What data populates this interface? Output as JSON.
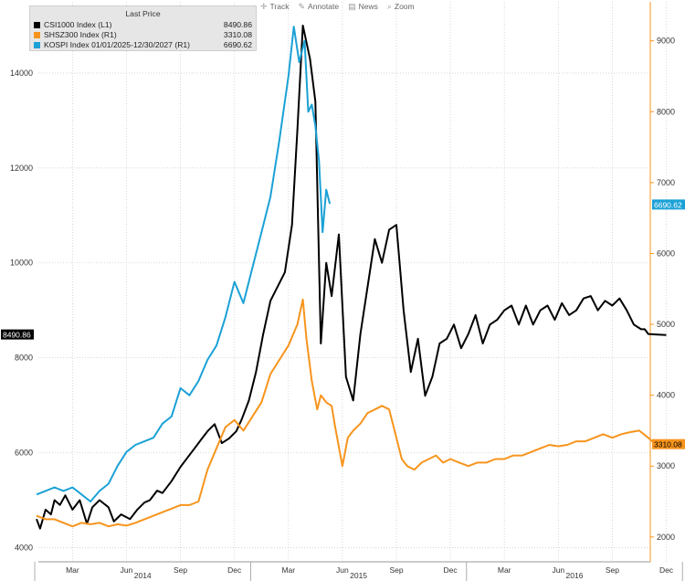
{
  "legend": {
    "title": "Last Price",
    "entries": [
      {
        "label": "CSI1000 Index  (L1)",
        "last": "8490.86",
        "color": "#000000"
      },
      {
        "label": "SHSZ300 Index  (R1)",
        "last": "3310.08",
        "color": "#f7941d"
      },
      {
        "label": "KOSPI Index 01/01/2025-12/30/2027  (R1)",
        "last": "6690.62",
        "color": "#1ba1d6"
      }
    ]
  },
  "toolbar": {
    "items": [
      {
        "label": "Track",
        "icon": "crosshair-icon",
        "glyph": "✛"
      },
      {
        "label": "Annotate",
        "icon": "pencil-icon",
        "glyph": "✎"
      },
      {
        "label": "News",
        "icon": "news-icon",
        "glyph": "▤"
      },
      {
        "label": "Zoom",
        "icon": "magnifier-icon",
        "glyph": "⌕"
      }
    ]
  },
  "chart_data": {
    "type": "line",
    "x_range": [
      "2014-01",
      "2016-12"
    ],
    "x_ticks": {
      "months": [
        "Mar",
        "Jun",
        "Sep",
        "Dec",
        "Mar",
        "Jun",
        "Sep",
        "Dec",
        "Mar",
        "Jun",
        "Sep",
        "Dec"
      ],
      "years": [
        "2014",
        "2015",
        "2016"
      ]
    },
    "left_axis": {
      "ylim": [
        3700,
        15500
      ],
      "ticks": [
        "4000",
        "6000",
        "8000",
        "10000",
        "12000",
        "14000"
      ]
    },
    "right_axis": {
      "ylim": [
        1650,
        9550
      ],
      "ticks": [
        "2000",
        "3000",
        "4000",
        "5000",
        "6000",
        "7000",
        "8000",
        "9000"
      ]
    },
    "grid": true,
    "last_value_tags": {
      "left": "8490.86",
      "right_shsz300": "3310.08",
      "right_kospi": "6690.62"
    },
    "series": [
      {
        "name": "CSI1000 Index (L1)",
        "color": "#000000",
        "axis": "left",
        "x": [
          0,
          0.2,
          0.5,
          0.8,
          1.0,
          1.3,
          1.6,
          2.0,
          2.4,
          2.8,
          3.1,
          3.5,
          4.0,
          4.3,
          4.7,
          5.2,
          5.6,
          6.0,
          6.3,
          6.7,
          7.0,
          7.5,
          8.0,
          8.4,
          8.8,
          9.2,
          9.5,
          9.9,
          10.3,
          10.7,
          11.1,
          11.4,
          11.8,
          12.2,
          12.6,
          13.0,
          13.4,
          13.8,
          14.2,
          14.5,
          14.8,
          15.2,
          15.5,
          15.8,
          16.1,
          16.4,
          16.8,
          17.2,
          17.6,
          18.0,
          18.4,
          18.8,
          19.2,
          19.6,
          20.0,
          20.4,
          20.8,
          21.2,
          21.6,
          22.0,
          22.4,
          22.8,
          23.2,
          23.6,
          24.0,
          24.4,
          24.8,
          25.2,
          25.6,
          26.0,
          26.4,
          26.8,
          27.2,
          27.6,
          28.0,
          28.4,
          28.8,
          29.2,
          29.6,
          30.0,
          30.4,
          30.8,
          31.2,
          31.6,
          32.0,
          32.4,
          32.8,
          33.2,
          33.6,
          33.8,
          34.0,
          34.4,
          35.0
        ],
        "values": [
          4600,
          4400,
          4800,
          4700,
          5000,
          4900,
          5100,
          4800,
          5000,
          4500,
          4850,
          5000,
          4850,
          4550,
          4700,
          4600,
          4800,
          4950,
          5000,
          5200,
          5150,
          5400,
          5700,
          5900,
          6100,
          6300,
          6450,
          6600,
          6200,
          6300,
          6450,
          6700,
          7100,
          7700,
          8500,
          9200,
          9500,
          9800,
          10800,
          12800,
          15000,
          14300,
          13400,
          8300,
          10000,
          9300,
          10600,
          7600,
          7100,
          8500,
          9500,
          10500,
          10000,
          10700,
          10800,
          9000,
          7700,
          8400,
          7200,
          7600,
          8300,
          8400,
          8700,
          8200,
          8500,
          8900,
          8300,
          8700,
          8800,
          9000,
          9100,
          8700,
          9100,
          8700,
          9000,
          9100,
          8800,
          9150,
          8900,
          9000,
          9250,
          9300,
          9000,
          9200,
          9100,
          9250,
          9000,
          8700,
          8600,
          8600,
          8500,
          8490.86,
          8480
        ]
      },
      {
        "name": "SHSZ300 Index (R1)",
        "color": "#f7941d",
        "axis": "right",
        "x": [
          0,
          0.5,
          1.0,
          1.5,
          2.0,
          2.5,
          3.0,
          3.5,
          4.0,
          4.5,
          5.0,
          5.5,
          6.0,
          6.5,
          7.0,
          7.5,
          8.0,
          8.5,
          9.0,
          9.5,
          10.0,
          10.5,
          11.0,
          11.5,
          12.0,
          12.5,
          13.0,
          13.5,
          14.0,
          14.5,
          14.8,
          15.0,
          15.3,
          15.6,
          15.8,
          16.1,
          16.4,
          16.6,
          17.0,
          17.3,
          17.6,
          18.0,
          18.4,
          18.8,
          19.2,
          19.6,
          20.0,
          20.3,
          20.6,
          21.0,
          21.4,
          21.8,
          22.2,
          22.6,
          23.0,
          23.5,
          24.0,
          24.5,
          25.0,
          25.5,
          26.0,
          26.5,
          27.0,
          27.5,
          28.0,
          28.5,
          29.0,
          29.5,
          30.0,
          30.5,
          31.0,
          31.5,
          32.0,
          32.5,
          33.0,
          33.5,
          34.0,
          34.4,
          35.0
        ],
        "values": [
          2300,
          2250,
          2250,
          2200,
          2150,
          2200,
          2180,
          2200,
          2150,
          2180,
          2160,
          2200,
          2250,
          2300,
          2350,
          2400,
          2450,
          2450,
          2500,
          2950,
          3250,
          3550,
          3650,
          3500,
          3700,
          3900,
          4300,
          4500,
          4700,
          5000,
          5350,
          4800,
          4200,
          3800,
          4000,
          3900,
          3850,
          3550,
          3000,
          3400,
          3500,
          3600,
          3750,
          3800,
          3850,
          3800,
          3400,
          3100,
          3000,
          2950,
          3050,
          3100,
          3150,
          3050,
          3100,
          3050,
          3000,
          3050,
          3050,
          3100,
          3100,
          3150,
          3150,
          3200,
          3250,
          3300,
          3280,
          3300,
          3350,
          3350,
          3400,
          3450,
          3400,
          3450,
          3480,
          3500,
          3400,
          3310.08,
          3300
        ]
      },
      {
        "name": "KOSPI Index 01/01/2025-12/30/2027 (R1)",
        "color": "#1ba1d6",
        "axis": "right",
        "x": [
          0,
          0.5,
          1.0,
          1.5,
          2.0,
          2.5,
          3.0,
          3.5,
          4.0,
          4.5,
          5.0,
          5.5,
          6.0,
          6.5,
          7.0,
          7.5,
          8.0,
          8.5,
          9.0,
          9.5,
          10.0,
          10.5,
          11.0,
          11.5,
          12.0,
          12.5,
          13.0,
          13.5,
          14.0,
          14.3,
          14.6,
          14.9,
          15.1,
          15.3,
          15.5,
          15.7,
          15.9,
          16.1,
          16.3
        ],
        "values": [
          2600,
          2650,
          2700,
          2650,
          2700,
          2600,
          2500,
          2650,
          2750,
          3000,
          3200,
          3300,
          3350,
          3400,
          3600,
          3700,
          4100,
          4000,
          4200,
          4500,
          4700,
          5100,
          5600,
          5300,
          5800,
          6300,
          6800,
          7600,
          8500,
          9200,
          8700,
          9000,
          8000,
          8100,
          7800,
          7300,
          6300,
          6900,
          6700
        ]
      }
    ]
  }
}
